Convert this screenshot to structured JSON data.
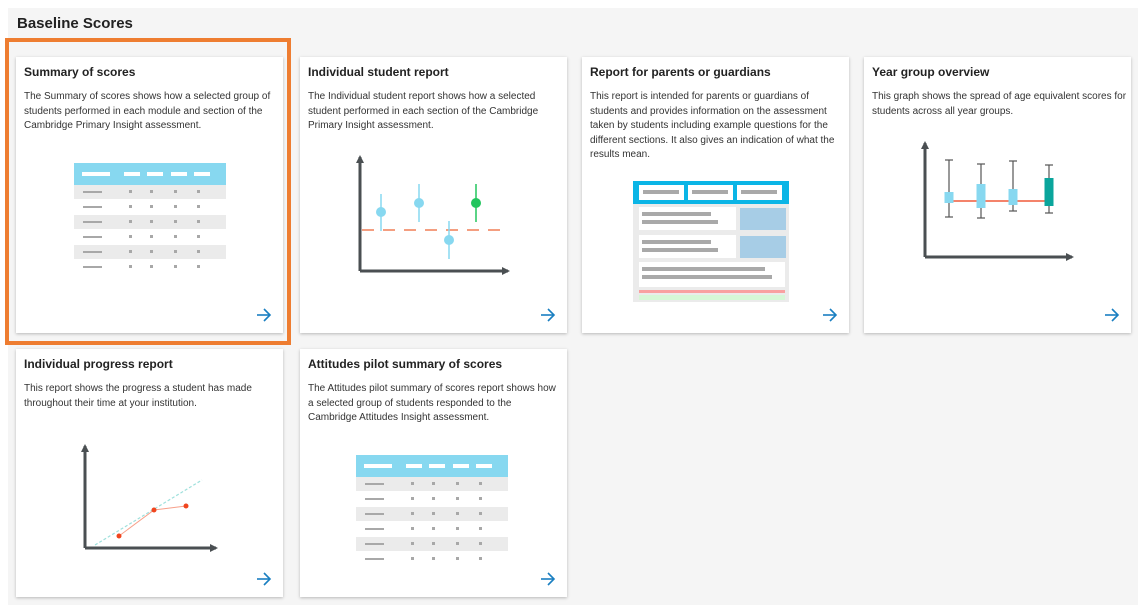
{
  "page": {
    "title": "Baseline Scores"
  },
  "colors": {
    "highlight": "#ee7d31",
    "accent": "#1a7fc1",
    "table_header": "#87d8f0",
    "axis": "#4a4f52",
    "target_line": "#f07f57",
    "green_point": "#22c55e"
  },
  "cards": [
    {
      "title": "Summary of scores",
      "description": "The Summary of scores shows how a selected group of students performed in each module and section of the Cambridge Primary Insight assessment.",
      "illustration": "table",
      "selected": true,
      "arrow_icon": "arrow-right-icon"
    },
    {
      "title": "Individual student report",
      "description": "The Individual student report shows how a selected student performed in each section of the Cambridge Primary Insight assessment.",
      "illustration": "error-bar-chart",
      "arrow_icon": "arrow-right-icon"
    },
    {
      "title": "Report for parents or guardians",
      "description": "This report is intended for parents or guardians of students and provides information on the assessment taken by students including example questions for the different sections. It also gives an indication of what the results mean.",
      "illustration": "document",
      "arrow_icon": "arrow-right-icon"
    },
    {
      "title": "Year group overview",
      "description": "This graph shows the spread of age equivalent scores for students across all year groups.",
      "illustration": "box-plot",
      "arrow_icon": "arrow-right-icon"
    },
    {
      "title": "Individual progress report",
      "description": "This report shows the progress a student has made throughout their time at your institution.",
      "illustration": "progress-line-chart",
      "arrow_icon": "arrow-right-icon"
    },
    {
      "title": "Attitudes pilot summary of scores",
      "description": "The Attitudes pilot summary of scores report shows how a selected group of students responded to the Cambridge Attitudes Insight assessment.",
      "illustration": "table",
      "arrow_icon": "arrow-right-icon"
    }
  ]
}
